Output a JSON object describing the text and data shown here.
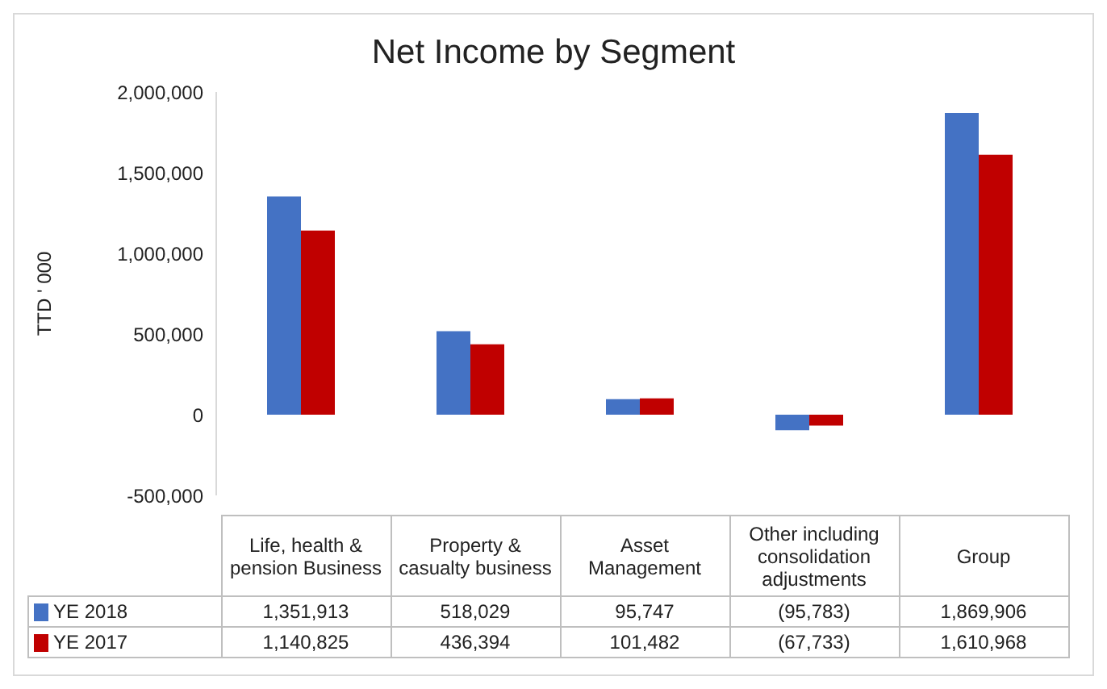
{
  "chart_data": {
    "type": "bar",
    "title": "Net Income by Segment",
    "ylabel": "TTD ' 000",
    "categories": [
      "Life,  health & pension Business",
      "Property & casualty business",
      "Asset Management",
      "Other including consolidation adjustments",
      "Group"
    ],
    "series": [
      {
        "name": "YE 2018",
        "color": "#4472c4",
        "values": [
          1351913,
          518029,
          95747,
          -95783,
          1869906
        ],
        "value_labels": [
          "1,351,913",
          "518,029",
          "95,747",
          "(95,783)",
          "1,869,906"
        ]
      },
      {
        "name": "YE 2017",
        "color": "#c00000",
        "values": [
          1140825,
          436394,
          101482,
          -67733,
          1610968
        ],
        "value_labels": [
          "1,140,825",
          "436,394",
          "101,482",
          "(67,733)",
          "1,610,968"
        ]
      }
    ],
    "ylim": [
      -500000,
      2000000
    ],
    "yticks": [
      {
        "value": -500000,
        "label": "-500,000"
      },
      {
        "value": 0,
        "label": "0"
      },
      {
        "value": 500000,
        "label": "500,000"
      },
      {
        "value": 1000000,
        "label": "1,000,000"
      },
      {
        "value": 1500000,
        "label": "1,500,000"
      },
      {
        "value": 2000000,
        "label": "2,000,000"
      }
    ],
    "legend": "bottom left"
  }
}
